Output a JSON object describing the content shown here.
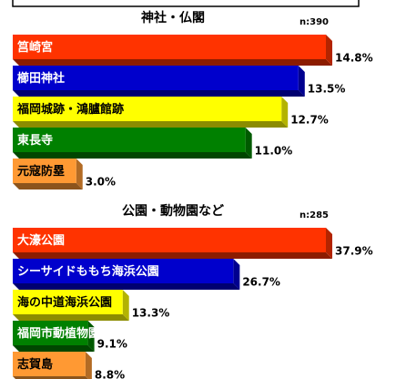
{
  "chart_data": [
    {
      "type": "bar",
      "orientation": "horizontal",
      "title": "神社・仏閣",
      "note": "n:390",
      "categories": [
        "筥崎宮",
        "櫛田神社",
        "福岡城跡・鴻臚館跡",
        "東長寺",
        "元寇防塁"
      ],
      "values": [
        14.8,
        13.5,
        12.7,
        11.0,
        3.0
      ],
      "value_labels": [
        "14.8%",
        "13.5%",
        "12.7%",
        "11.0%",
        "3.0%"
      ],
      "colors": [
        "#ff3300",
        "#0000cc",
        "#ffff00",
        "#008000",
        "#ff9933"
      ]
    },
    {
      "type": "bar",
      "orientation": "horizontal",
      "title": "公園・動物園など",
      "note": "n:285",
      "categories": [
        "大濠公園",
        "シーサイドももち海浜公園",
        "海の中道海浜公園",
        "福岡市動植物園",
        "志賀島"
      ],
      "values": [
        37.9,
        26.7,
        13.3,
        9.1,
        8.8
      ],
      "value_labels": [
        "37.9%",
        "26.7%",
        "13.3%",
        "9.1%",
        "8.8%"
      ],
      "colors": [
        "#ff3300",
        "#0000cc",
        "#ffff00",
        "#008000",
        "#ff9933"
      ]
    }
  ]
}
